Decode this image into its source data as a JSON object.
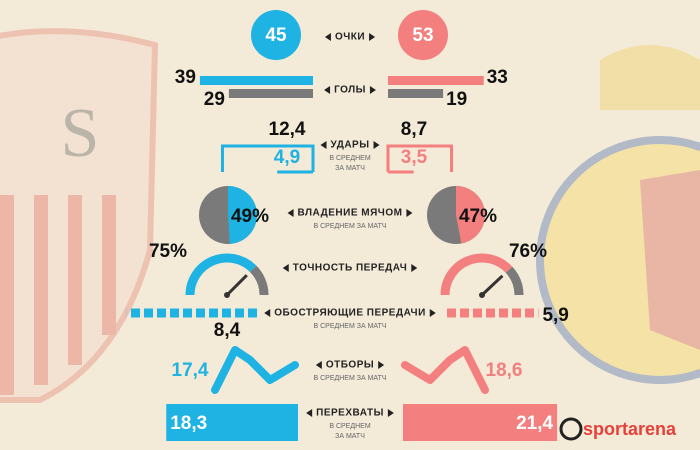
{
  "points": {
    "label": "ОЧКИ",
    "left": 45,
    "right": 53
  },
  "goals": {
    "label": "ГОЛЫ",
    "left": {
      "scored": 39,
      "conceded": 29
    },
    "right": {
      "scored": 33,
      "conceded": 19
    }
  },
  "shots": {
    "label": "УДАРЫ",
    "sublabel": [
      "В СРЕДНЕМ",
      "ЗА МАТЧ"
    ],
    "left": {
      "total": {
        "value": 12.4,
        "label": "12,4"
      },
      "on_target": {
        "value": 4.9,
        "label": "4,9"
      }
    },
    "right": {
      "total": {
        "value": 8.7,
        "label": "8,7"
      },
      "on_target": {
        "value": 3.5,
        "label": "3,5"
      }
    }
  },
  "possession": {
    "label": "ВЛАДЕНИЕ МЯЧОМ",
    "sublabel": [
      "В СРЕДНЕМ ЗА МАТЧ"
    ],
    "left": {
      "value": 49,
      "label": "49%"
    },
    "right": {
      "value": 47,
      "label": "47%"
    }
  },
  "passing": {
    "label": "ТОЧНОСТЬ ПЕРЕДАЧ",
    "left": {
      "value": 75,
      "label": "75%"
    },
    "right": {
      "value": 76,
      "label": "76%"
    }
  },
  "crosses": {
    "label": "ОБОСТРЯЮЩИЕ ПЕРЕДАЧИ",
    "sublabel": [
      "В СРЕДНЕМ ЗА МАТЧ"
    ],
    "left": {
      "value": 8.4,
      "label": "8,4"
    },
    "right": {
      "value": 5.9,
      "label": "5,9"
    }
  },
  "tackles": {
    "label": "ОТБОРЫ",
    "sublabel": [
      "В СРЕДНЕМ ЗА МАТЧ"
    ],
    "left": {
      "value": 17.4,
      "label": "17,4"
    },
    "right": {
      "value": 18.6,
      "label": "18,6"
    }
  },
  "interceptions": {
    "label": "ПЕРЕХВАТЫ",
    "sublabel": [
      "В СРЕДНЕМ",
      "ЗА МАТЧ"
    ],
    "left": {
      "value": 18.3,
      "label": "18,3"
    },
    "right": {
      "value": 21.4,
      "label": "21,4"
    }
  },
  "colors": {
    "left": "#1fb3e3",
    "right": "#f47f7f",
    "neutral": "#7a7a7a"
  },
  "brand": "sportarena"
}
